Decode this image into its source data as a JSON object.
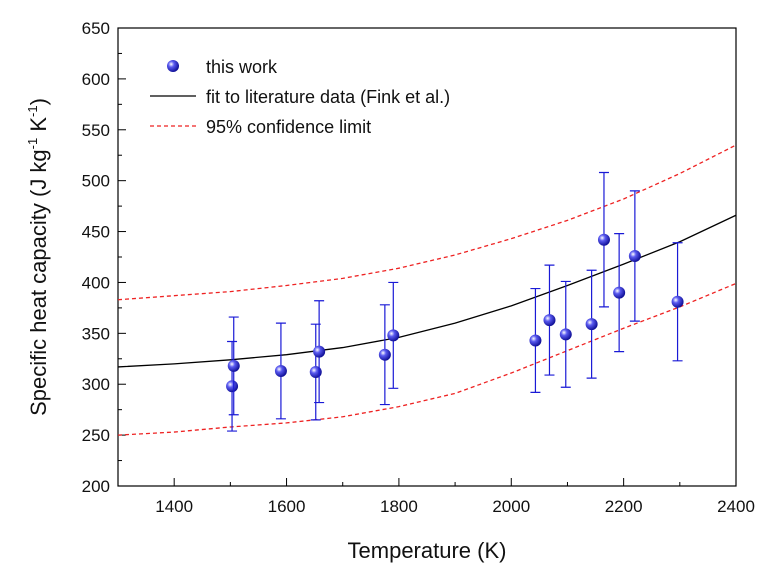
{
  "chart_data": {
    "type": "scatter",
    "xlabel": "Temperature (K)",
    "ylabel": [
      "Specific heat capacity (J kg",
      "-1",
      " K",
      "-1",
      ")"
    ],
    "xlim": [
      1300,
      2400
    ],
    "ylim": [
      200,
      650
    ],
    "xticks": [
      1400,
      1600,
      1800,
      2000,
      2200,
      2400
    ],
    "yticks": [
      200,
      250,
      300,
      350,
      400,
      450,
      500,
      550,
      600,
      650
    ],
    "xminor_ticks": [
      1300,
      1500,
      1700,
      1900,
      2100,
      2300
    ],
    "yminor_ticks": [
      225,
      275,
      325,
      375,
      425,
      475,
      525,
      575,
      625
    ],
    "legend": "upper left",
    "series": [
      {
        "name": "this work",
        "type": "scatter",
        "color": "#1a1ad6",
        "x": [
          1503,
          1506,
          1590,
          1652,
          1658,
          1775,
          1790,
          2043,
          2068,
          2097,
          2143,
          2165,
          2192,
          2220,
          2296
        ],
        "values": [
          298,
          318,
          313,
          312,
          332,
          329,
          348,
          343,
          363,
          349,
          359,
          442,
          390,
          426,
          381
        ],
        "errors": [
          44,
          48,
          47,
          47,
          50,
          49,
          52,
          51,
          54,
          52,
          53,
          66,
          58,
          64,
          58
        ]
      },
      {
        "name": "fit to literature data (Fink et al.)",
        "type": "line",
        "color": "#000000",
        "x": [
          1300,
          1400,
          1500,
          1600,
          1700,
          1800,
          1900,
          2000,
          2100,
          2200,
          2300,
          2400
        ],
        "values": [
          317,
          320,
          324,
          329,
          336,
          346,
          360,
          377,
          397,
          418,
          440,
          466
        ]
      },
      {
        "name": "95% confidence limit",
        "type": "band",
        "color": "#ee2222",
        "x": [
          1300,
          1400,
          1500,
          1600,
          1700,
          1800,
          1900,
          2000,
          2100,
          2200,
          2300,
          2400
        ],
        "upper": [
          383,
          387,
          391,
          397,
          404,
          414,
          427,
          443,
          461,
          482,
          507,
          535
        ],
        "lower": [
          250,
          253,
          258,
          262,
          268,
          278,
          291,
          311,
          333,
          355,
          376,
          399
        ]
      }
    ]
  }
}
